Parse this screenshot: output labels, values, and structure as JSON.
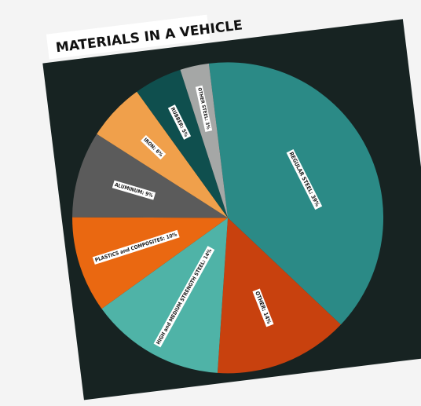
{
  "chart_data": {
    "type": "pie",
    "title": "MATERIALS IN A VEHICLE",
    "slices": [
      {
        "label": "REGULAR STEEL: 39%",
        "value": 39,
        "color": "#2b8a86"
      },
      {
        "label": "OTHER: 14%",
        "value": 14,
        "color": "#c8410e"
      },
      {
        "label": "HIGH and MEDIUM STRENGTH STEEL: 14%",
        "value": 14,
        "color": "#4fb3a7"
      },
      {
        "label": "PLASTICS and COMPOSITES: 10%",
        "value": 10,
        "color": "#ea6811"
      },
      {
        "label": "ALUMINUM: 9%",
        "value": 9,
        "color": "#5b5b5b"
      },
      {
        "label": "IRON: 6%",
        "value": 6,
        "color": "#f0a04b"
      },
      {
        "label": "RUBBER: 5%",
        "value": 5,
        "color": "#0f4f4e"
      },
      {
        "label": "OTHER STEEL: 3%",
        "value": 3,
        "color": "#a5a7a6"
      }
    ],
    "background_color": "#172322"
  }
}
